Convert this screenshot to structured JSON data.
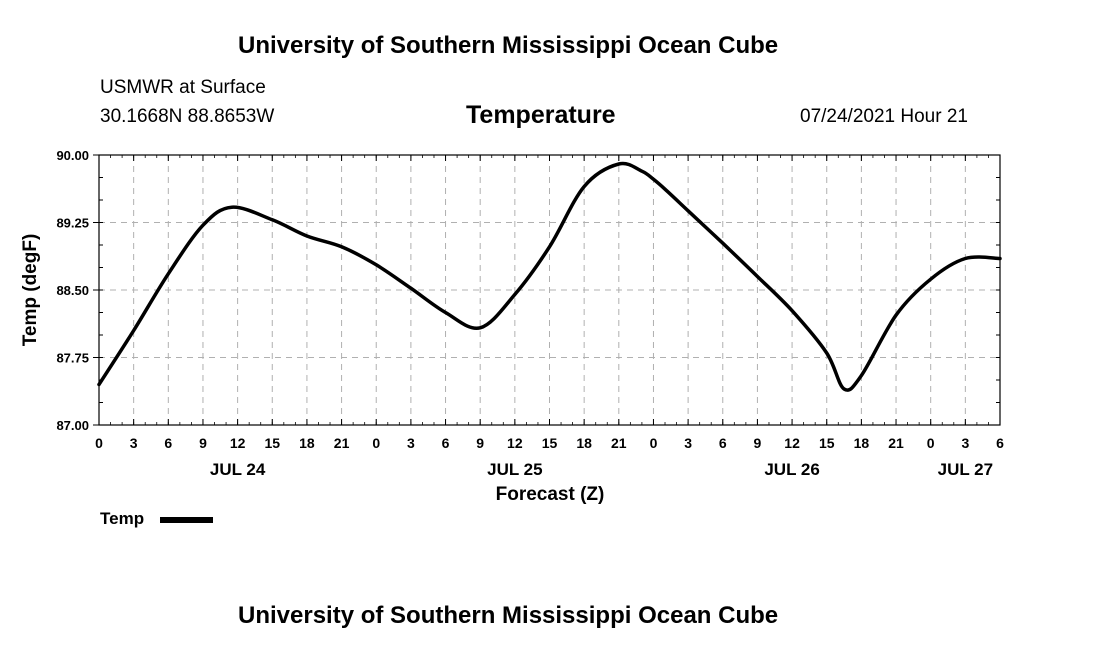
{
  "header": {
    "title_top": "University of Southern Mississippi Ocean Cube",
    "station": "USMWR at Surface",
    "coords": "30.1668N  88.8653W",
    "variable": "Temperature",
    "run_time": "07/24/2021 Hour 21"
  },
  "footer": {
    "title_bottom": "University of Southern Mississippi Ocean Cube"
  },
  "legend": {
    "label": "Temp",
    "color": "#000000"
  },
  "chart_data": {
    "type": "line",
    "title": "Temperature",
    "xlabel": "Forecast (Z)",
    "ylabel": "Temp (degF)",
    "ylim": [
      87.0,
      90.0
    ],
    "xlim": [
      0,
      78
    ],
    "x_units": "hours since JUL 24 00Z",
    "y_ticks": [
      87.0,
      87.75,
      88.5,
      89.25,
      90.0
    ],
    "y_tick_labels": [
      "87.00",
      "87.75",
      "88.50",
      "89.25",
      "90.00"
    ],
    "x_ticks": [
      0,
      3,
      6,
      9,
      12,
      15,
      18,
      21,
      24,
      27,
      30,
      33,
      36,
      39,
      42,
      45,
      48,
      51,
      54,
      57,
      60,
      63,
      66,
      69,
      72,
      75,
      78
    ],
    "x_tick_labels": [
      "0",
      "3",
      "6",
      "9",
      "12",
      "15",
      "18",
      "21",
      "0",
      "3",
      "6",
      "9",
      "12",
      "15",
      "18",
      "21",
      "0",
      "3",
      "6",
      "9",
      "12",
      "15",
      "18",
      "21",
      "0",
      "3",
      "6"
    ],
    "date_labels": [
      {
        "x": 12,
        "label": "JUL 24"
      },
      {
        "x": 36,
        "label": "JUL 25"
      },
      {
        "x": 60,
        "label": "JUL 26"
      },
      {
        "x": 75,
        "label": "JUL 27"
      }
    ],
    "grid": true,
    "series": [
      {
        "name": "Temp",
        "color": "#000000",
        "x": [
          0,
          3,
          6,
          9,
          11.5,
          15,
          18,
          21,
          24,
          27,
          30,
          33,
          36,
          39,
          42,
          45,
          47,
          48,
          49,
          51,
          54,
          57,
          60,
          63,
          64.5,
          66,
          69,
          72,
          75,
          78
        ],
        "values": [
          87.45,
          88.05,
          88.68,
          89.22,
          89.42,
          89.28,
          89.1,
          88.98,
          88.78,
          88.52,
          88.25,
          88.08,
          88.45,
          88.98,
          89.65,
          89.9,
          89.82,
          89.73,
          89.62,
          89.38,
          89.02,
          88.65,
          88.27,
          87.8,
          87.4,
          87.55,
          88.22,
          88.62,
          88.85,
          88.85
        ]
      }
    ]
  }
}
